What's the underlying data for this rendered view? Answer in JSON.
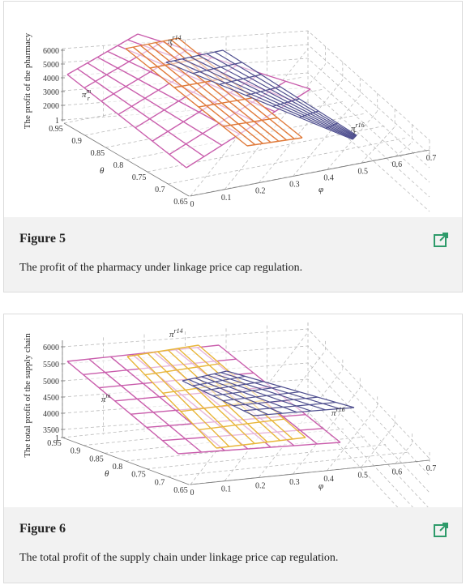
{
  "figures": [
    {
      "label": "Figure 5",
      "caption": "The profit of the pharmacy under linkage price cap regulation.",
      "chart_data": {
        "type": "surface3d",
        "zlabel": "The profit of the pharmacy",
        "theta_label": "θ",
        "phi_label": "φ",
        "z_ticks": [
          "6000",
          "5000",
          "4000",
          "3000",
          "2000",
          "1"
        ],
        "theta_ticks": [
          "0.95",
          "0.9",
          "0.85",
          "0.8",
          "0.75",
          "0.7",
          "0.65"
        ],
        "phi_ticks": [
          "0",
          "0.1",
          "0.2",
          "0.3",
          "0.4",
          "0.5",
          "0.6",
          "0.7"
        ],
        "series": [
          {
            "name": "π_r^m",
            "label_main": "π",
            "label_sup": "m",
            "label_sub": "r",
            "color": "#c95dac"
          },
          {
            "name": "π_r^14",
            "label_main": "π",
            "label_sup": "r14",
            "label_sub": "r",
            "color": "#e07a3a"
          },
          {
            "name": "π_r^16",
            "label_main": "π",
            "label_sup": "r16",
            "label_sub": "r",
            "color": "#4f4f8f"
          }
        ]
      }
    },
    {
      "label": "Figure 6",
      "caption": "The total profit of the supply chain under linkage price cap regulation.",
      "chart_data": {
        "type": "surface3d",
        "zlabel": "The total profit of the supply chain",
        "theta_label": "θ",
        "phi_label": "φ",
        "z_ticks": [
          "6000",
          "5500",
          "5000",
          "4500",
          "4000",
          "3500",
          "1"
        ],
        "theta_ticks": [
          "0.95",
          "0.9",
          "0.85",
          "0.8",
          "0.75",
          "0.7",
          "0.65"
        ],
        "phi_ticks": [
          "0",
          "0.1",
          "0.2",
          "0.3",
          "0.4",
          "0.5",
          "0.6",
          "0.7"
        ],
        "series": [
          {
            "name": "π^m",
            "label_main": "π",
            "label_sup": "m",
            "label_sub": "",
            "color": "#c95dac"
          },
          {
            "name": "π^14",
            "label_main": "π",
            "label_sup": "r14",
            "label_sub": "",
            "color": "#e8b63a"
          },
          {
            "name": "π^16",
            "label_main": "π",
            "label_sup": "r16",
            "label_sub": "",
            "color": "#4f4f8f"
          }
        ]
      }
    }
  ]
}
